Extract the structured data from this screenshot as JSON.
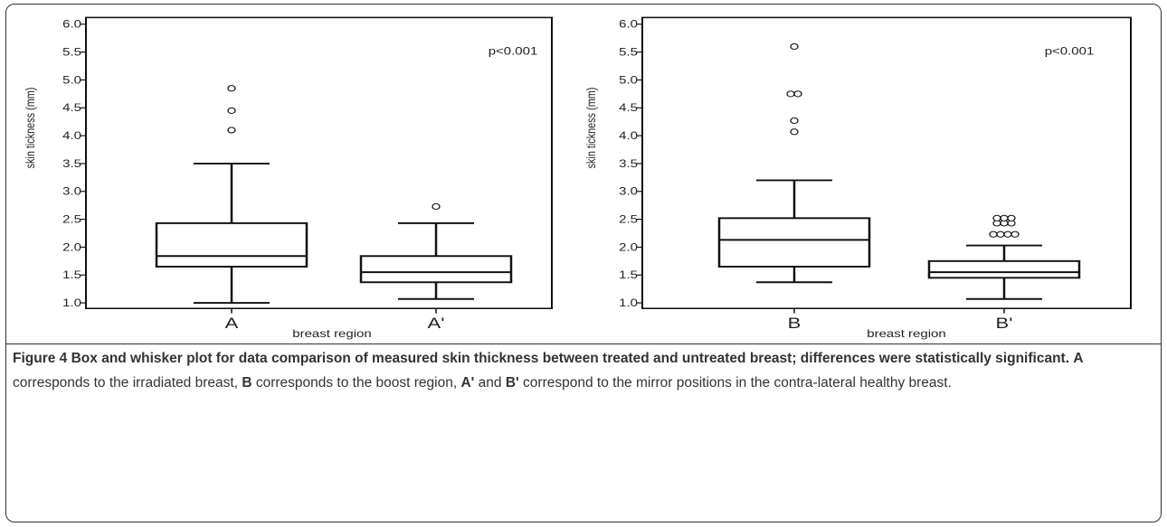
{
  "chart_data": [
    {
      "type": "box",
      "ylabel": "skin tickness (mm)",
      "xlabel": "breast region",
      "ylim": [
        0.9,
        6.12
      ],
      "yticks": [
        "1.0",
        "1.5",
        "2.0",
        "2.5",
        "3.0",
        "3.5",
        "4.0",
        "4.5",
        "5.0",
        "5.5",
        "6.0"
      ],
      "annotation": "p<0.001",
      "categories": [
        "A",
        "A'"
      ],
      "boxes": [
        {
          "label": "A",
          "whisker_low": 1.0,
          "q1": 1.65,
          "median": 1.84,
          "q3": 2.43,
          "whisker_high": 3.5,
          "outliers": [
            4.1,
            4.45,
            4.85
          ]
        },
        {
          "label": "A'",
          "whisker_low": 1.07,
          "q1": 1.37,
          "median": 1.55,
          "q3": 1.84,
          "whisker_high": 2.43,
          "outliers": [
            2.73
          ]
        }
      ]
    },
    {
      "type": "box",
      "ylabel": "skin tickness (mm)",
      "xlabel": "breast region",
      "ylim": [
        0.9,
        6.12
      ],
      "yticks": [
        "1.0",
        "1.5",
        "2.0",
        "2.5",
        "3.0",
        "3.5",
        "4.0",
        "4.5",
        "5.0",
        "5.5",
        "6.0"
      ],
      "annotation": "p<0.001",
      "categories": [
        "B",
        "B'"
      ],
      "boxes": [
        {
          "label": "B",
          "whisker_low": 1.37,
          "q1": 1.65,
          "median": 2.13,
          "q3": 2.52,
          "whisker_high": 3.2,
          "outliers": [
            4.07,
            4.27,
            4.75,
            4.75,
            5.6
          ]
        },
        {
          "label": "B'",
          "whisker_low": 1.07,
          "q1": 1.45,
          "median": 1.55,
          "q3": 1.75,
          "whisker_high": 2.03,
          "outliers": [
            2.23,
            2.23,
            2.23,
            2.23,
            2.43,
            2.43,
            2.43,
            2.52,
            2.52,
            2.52
          ]
        }
      ]
    }
  ],
  "caption": {
    "figure_label": "Figure 4",
    "title": "Box and whisker plot for data comparison of measured skin thickness between treated and untreated breast; differences were statistically significant.",
    "seg1_label": "A",
    "seg1_text": "corresponds to the irradiated breast,",
    "seg2_label": "B",
    "seg2_text": "corresponds to the boost region,",
    "seg3_label_a": "A'",
    "seg3_and": "and",
    "seg3_label_b": "B'",
    "seg3_text": "correspond to the mirror positions in the contra-lateral healthy breast."
  },
  "colors": {
    "stroke": "#111111",
    "border": "#333333",
    "text": "#222222"
  }
}
